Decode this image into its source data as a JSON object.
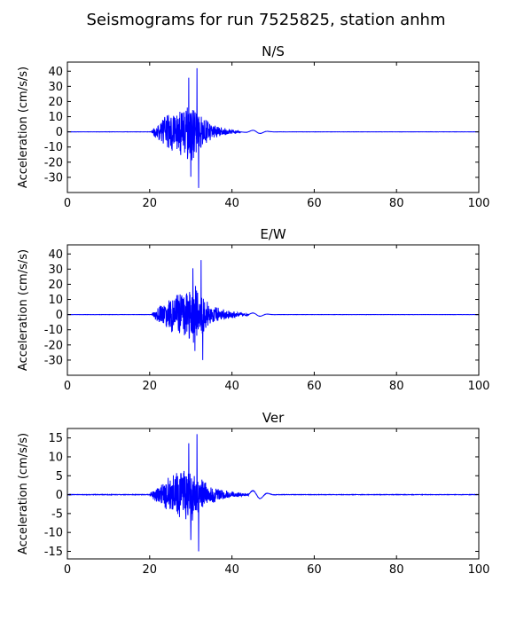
{
  "figure": {
    "suptitle": "Seismograms for run 7525825, station anhm",
    "line_color": "#0000ff"
  },
  "chart_data": [
    {
      "type": "line",
      "title": "N/S",
      "xlabel": "",
      "ylabel": "Acceleration (cm/s/s)",
      "xlim": [
        0,
        100
      ],
      "ylim": [
        -40,
        46
      ],
      "xticks": [
        0,
        20,
        40,
        60,
        80,
        100
      ],
      "yticks": [
        -30,
        -20,
        -10,
        0,
        10,
        20,
        30,
        40
      ],
      "grid": false,
      "signal": {
        "onset": 20.5,
        "peak_time": 30,
        "end": 42,
        "envelope": 22,
        "max_positive": 42,
        "min_negative": -37
      }
    },
    {
      "type": "line",
      "title": "E/W",
      "xlabel": "",
      "ylabel": "Acceleration (cm/s/s)",
      "xlim": [
        0,
        100
      ],
      "ylim": [
        -40,
        46
      ],
      "xticks": [
        0,
        20,
        40,
        60,
        80,
        100
      ],
      "yticks": [
        -30,
        -20,
        -10,
        0,
        10,
        20,
        30,
        40
      ],
      "grid": false,
      "signal": {
        "onset": 20.5,
        "peak_time": 31,
        "end": 44,
        "envelope": 20,
        "max_positive": 36,
        "min_negative": -30
      }
    },
    {
      "type": "line",
      "title": "Ver",
      "xlabel": "",
      "ylabel": "Acceleration (cm/s/s)",
      "xlim": [
        0,
        100
      ],
      "ylim": [
        -17,
        17.5
      ],
      "xticks": [
        0,
        20,
        40,
        60,
        80,
        100
      ],
      "yticks": [
        -15,
        -10,
        -5,
        0,
        5,
        10,
        15
      ],
      "grid": false,
      "signal": {
        "onset": 20,
        "peak_time": 30,
        "end": 44,
        "envelope": 8,
        "max_positive": 16,
        "min_negative": -15
      }
    }
  ]
}
